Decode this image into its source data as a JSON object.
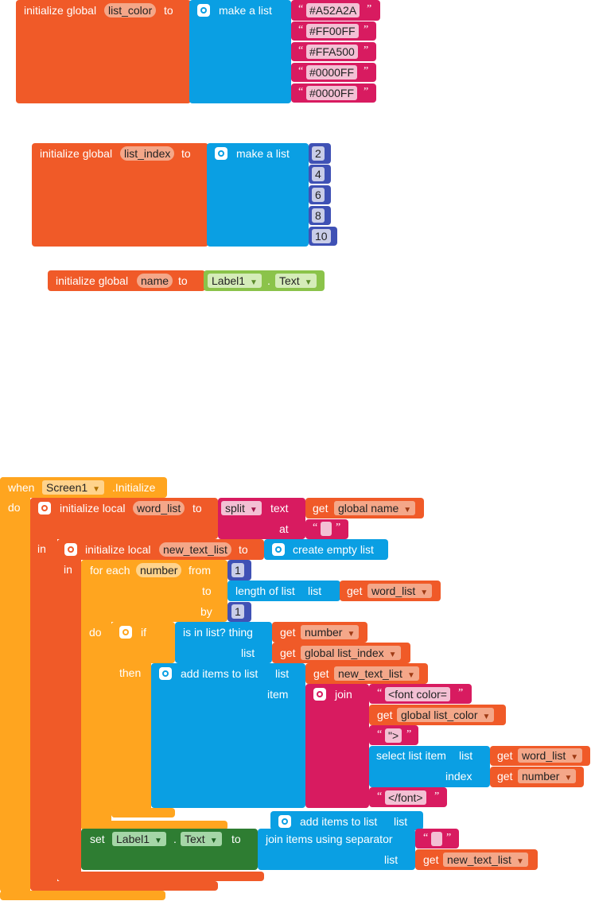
{
  "colors": {
    "variables": "#F05A28",
    "lists": "#0A9FE3",
    "text": "#D81B60",
    "math": "#3F51B5",
    "control": "#FFA51F",
    "component": "#8BC34A",
    "setter": "#2E7D32"
  },
  "block_list_color": {
    "label_init": "initialize global",
    "var_name": "list_color",
    "label_to": "to",
    "label_make": "make a list",
    "items": [
      "#A52A2A",
      "#FF00FF",
      "#FFA500",
      "#0000FF",
      "#0000FF"
    ]
  },
  "block_list_index": {
    "label_init": "initialize global",
    "var_name": "list_index",
    "label_to": "to",
    "label_make": "make a list",
    "items": [
      "2",
      "4",
      "6",
      "8",
      "10"
    ]
  },
  "block_name": {
    "label_init": "initialize global",
    "var_name": "name",
    "label_to": "to",
    "component": "Label1",
    "dot": ".",
    "property": "Text"
  },
  "event": {
    "label_when": "when",
    "component": "Screen1",
    "event_name": ".Initialize",
    "label_do": "do",
    "local1": {
      "label_init": "initialize local",
      "var_name": "word_list",
      "label_to": "to",
      "split": "split",
      "label_text": "text",
      "label_get": "get",
      "get_name": "global name",
      "label_at": "at",
      "label_in": "in"
    },
    "local2": {
      "label_init": "initialize local",
      "var_name": "new_text_list",
      "label_to": "to",
      "create": "create empty list",
      "label_in": "in"
    },
    "foreach": {
      "label": "for each",
      "var_name": "number",
      "label_from": "from",
      "from": "1",
      "label_to": "to",
      "length_label": "length of list",
      "list_label": "list",
      "label_get": "get",
      "list_name": "word_list",
      "label_by": "by",
      "by": "1",
      "label_do": "do"
    },
    "if_block": {
      "label_if": "if",
      "is_in": "is in list? thing",
      "label_get": "get",
      "thing": "number",
      "label_list": "list",
      "list_name": "global list_index",
      "label_then": "then"
    },
    "add_items": {
      "label": "add items to list",
      "label_list": "list",
      "label_get": "get",
      "list_name": "new_text_list",
      "label_item": "item",
      "join": "join",
      "str1": "<font color=",
      "label_get2": "get",
      "color_name": "global list_color",
      "str2": "\">",
      "select": "select list item",
      "select_list_label": "list",
      "label_get3": "get",
      "select_list": "word_list",
      "index_label": "index",
      "label_get4": "get",
      "index_name": "number",
      "str3": "</font>"
    },
    "add_items2": {
      "label": "add items to list",
      "label_list": "list"
    },
    "setter": {
      "label_set": "set",
      "component": "Label1",
      "dot": ".",
      "property": "Text",
      "label_to": "to",
      "join_sep": "join items using separator",
      "label_list": "list",
      "label_get": "get",
      "list_name": "new_text_list"
    }
  }
}
